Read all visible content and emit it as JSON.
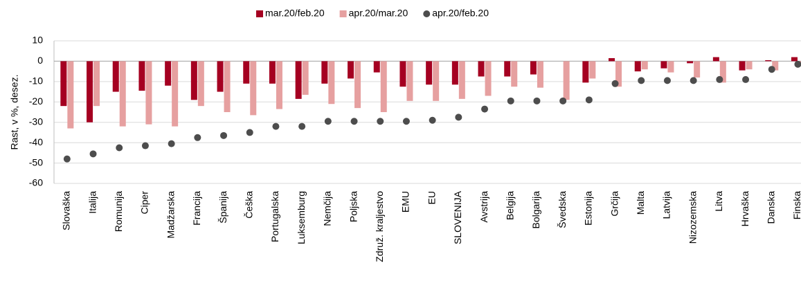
{
  "chart_data": {
    "type": "bar",
    "ylabel": "Rast, v %, desez.",
    "categories": [
      "Slovaška",
      "Italija",
      "Romunija",
      "Ciper",
      "Madžarska",
      "Francija",
      "Španija",
      "Češka",
      "Portugalska",
      "Luksemburg",
      "Nemčija",
      "Poljska",
      "Združ. kraljestvo",
      "EMU",
      "EU",
      "SLOVENIJA",
      "Avstrija",
      "Belgija",
      "Bolgarija",
      "Švedska",
      "Estonija",
      "Grčija",
      "Malta",
      "Latvija",
      "Nizozemska",
      "Litva",
      "Hrvaška",
      "Danska",
      "Finska"
    ],
    "series": [
      {
        "name": "mar.20/feb.20",
        "type": "bar",
        "color": "#a50021",
        "values": [
          -22,
          -30,
          -15,
          -14.5,
          -12,
          -19,
          -15,
          -11,
          -11,
          -18.5,
          -11,
          -8.5,
          -5.5,
          -12.5,
          -11.5,
          -11.5,
          -7.5,
          -7.5,
          -6.5,
          0,
          -10.5,
          1.5,
          -5,
          -3.5,
          -1,
          2,
          -4.5,
          0.5,
          2
        ]
      },
      {
        "name": "apr.20/mar.20",
        "type": "bar",
        "color": "#e6a0a0",
        "values": [
          -33,
          -22,
          -32,
          -31,
          -32,
          -22,
          -25,
          -26.5,
          -23.5,
          -16.5,
          -21,
          -23,
          -25,
          -19.5,
          -19.5,
          -18.5,
          -17,
          -12.5,
          -13,
          -19,
          -8.5,
          -12.5,
          -4,
          -5.5,
          -8,
          -10.5,
          -4,
          -4.5,
          -1
        ]
      },
      {
        "name": "apr.20/feb.20",
        "type": "scatter",
        "color": "#4d4d4d",
        "values": [
          -48,
          -45.5,
          -42.5,
          -41.5,
          -40.5,
          -37.5,
          -36.5,
          -35,
          -32,
          -32,
          -29.5,
          -29.5,
          -29.5,
          -29.5,
          -29,
          -27.5,
          -23.5,
          -19.5,
          -19.5,
          -19.5,
          -19,
          -11,
          -9.5,
          -9.5,
          -9.5,
          -9,
          -9,
          -4,
          -1.5
        ]
      }
    ],
    "ylim": [
      -60,
      10
    ],
    "yticks": [
      -60,
      -50,
      -40,
      -30,
      -20,
      -10,
      0,
      10
    ],
    "grid": true,
    "legend": "top"
  }
}
